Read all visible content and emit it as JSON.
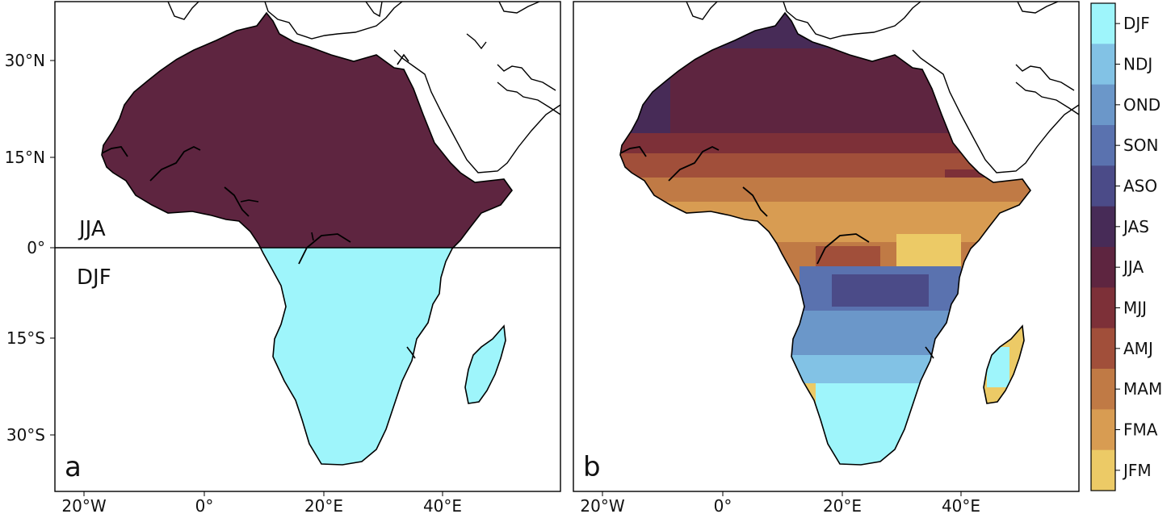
{
  "figure": {
    "panels": [
      {
        "id": "a",
        "letter": "a",
        "x_ticks": [
          "20°W",
          "0°",
          "20°E",
          "40°E"
        ],
        "y_ticks": [
          "30°N",
          "15°N",
          "0°",
          "15°S",
          "30°S"
        ],
        "region_labels": {
          "north": "JJA",
          "south": "DJF"
        },
        "description_values": {
          "north_season": "JJA",
          "south_season": "DJF"
        }
      },
      {
        "id": "b",
        "letter": "b",
        "x_ticks": [
          "20°W",
          "0°",
          "20°E",
          "40°E"
        ]
      }
    ],
    "colorbar": {
      "labels": [
        "DJF",
        "NDJ",
        "OND",
        "SON",
        "ASO",
        "JAS",
        "JJA",
        "MJJ",
        "AMJ",
        "MAM",
        "FMA",
        "JFM"
      ],
      "colors": [
        "#9ef5fb",
        "#82c2e5",
        "#6b97c9",
        "#5a72af",
        "#4b4b88",
        "#472b57",
        "#5e2540",
        "#7d3038",
        "#a14f3a",
        "#c07a45",
        "#d89c52",
        "#ecca66"
      ]
    }
  },
  "colors": {
    "jja": "#5e2540",
    "djf": "#9ef5fb",
    "land_outline": "#000000"
  }
}
